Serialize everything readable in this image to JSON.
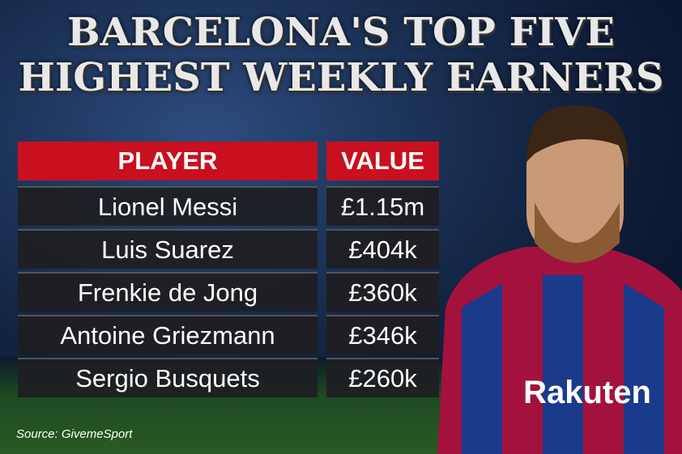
{
  "title_lines": [
    "BARCELONA'S TOP FIVE",
    "HIGHEST WEEKLY EARNERS"
  ],
  "table": {
    "header": [
      "PLAYER",
      "VALUE"
    ],
    "rows": [
      [
        "Lionel Messi",
        "£1.15m"
      ],
      [
        "Luis Suarez",
        "£404k"
      ],
      [
        "Frenkie de Jong",
        "£360k"
      ],
      [
        "Antoine Griezmann",
        "£346k"
      ],
      [
        "Sergio Busquets",
        "£260k"
      ]
    ]
  },
  "source": "Source: GivemeSport",
  "photo": {
    "shirt_sponsor": "Rakuten"
  }
}
